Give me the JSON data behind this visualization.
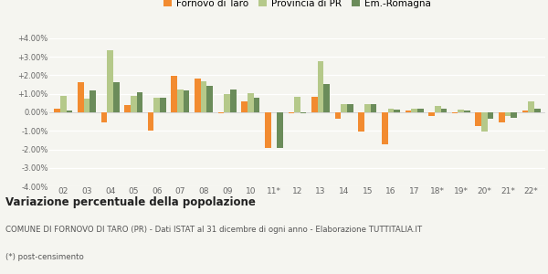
{
  "years": [
    "02",
    "03",
    "04",
    "05",
    "06",
    "07",
    "08",
    "09",
    "10",
    "11*",
    "12",
    "13",
    "14",
    "15",
    "16",
    "17",
    "18*",
    "19*",
    "20*",
    "21*",
    "22*"
  ],
  "fornovo": [
    0.18,
    1.62,
    -0.55,
    0.38,
    -1.0,
    1.98,
    1.82,
    -0.05,
    0.58,
    -1.95,
    -0.05,
    0.82,
    -0.35,
    -1.02,
    -1.72,
    0.1,
    -0.22,
    -0.05,
    -0.72,
    -0.52,
    0.1
  ],
  "provincia": [
    0.9,
    0.72,
    3.35,
    0.88,
    0.78,
    1.25,
    1.7,
    1.0,
    1.05,
    0.0,
    0.82,
    2.78,
    0.45,
    0.45,
    0.2,
    0.2,
    0.35,
    0.15,
    -1.05,
    -0.2,
    0.6
  ],
  "emromagna": [
    0.12,
    1.18,
    1.65,
    1.08,
    0.8,
    1.18,
    1.42,
    1.22,
    0.8,
    -1.95,
    -0.05,
    1.55,
    0.45,
    0.45,
    0.15,
    0.2,
    0.18,
    0.1,
    -0.35,
    -0.28,
    0.2
  ],
  "color_fornovo": "#f28b30",
  "color_provincia": "#b5c98a",
  "color_emromagna": "#6b8c5a",
  "legend_labels": [
    "Fornovo di Taro",
    "Provincia di PR",
    "Em.-Romagna"
  ],
  "title": "Variazione percentuale della popolazione",
  "footnote1": "COMUNE DI FORNOVO DI TARO (PR) - Dati ISTAT al 31 dicembre di ogni anno - Elaborazione TUTTITALIA.IT",
  "footnote2": "(*) post-censimento",
  "ylim": [
    -4.0,
    4.0
  ],
  "yticks": [
    -4.0,
    -3.0,
    -2.0,
    -1.0,
    0.0,
    1.0,
    2.0,
    3.0,
    4.0
  ],
  "bg_color": "#f5f5f0",
  "bar_width": 0.26
}
